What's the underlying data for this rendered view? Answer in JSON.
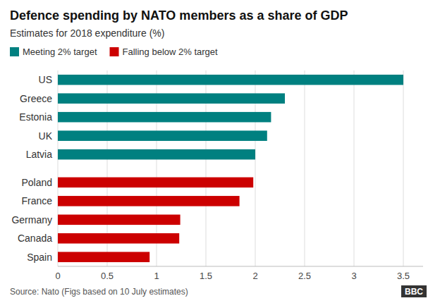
{
  "chart_data": {
    "type": "bar",
    "orientation": "horizontal",
    "title": "Defence spending by NATO members as a share of GDP",
    "subtitle": "Estimates for 2018 expenditure (%)",
    "categories": [
      "US",
      "Greece",
      "Estonia",
      "UK",
      "Latvia",
      "Poland",
      "France",
      "Germany",
      "Canada",
      "Spain"
    ],
    "series": [
      {
        "name": "Meeting 2% target",
        "color": "#008080",
        "values": [
          3.5,
          2.3,
          2.16,
          2.12,
          2.0,
          null,
          null,
          null,
          null,
          null
        ]
      },
      {
        "name": "Falling below 2% target",
        "color": "#cc0000",
        "values": [
          null,
          null,
          null,
          null,
          null,
          1.98,
          1.84,
          1.24,
          1.23,
          0.93
        ]
      }
    ],
    "xlim": [
      0,
      3.7
    ],
    "xticks": [
      0,
      0.5,
      1,
      1.5,
      2,
      2.5,
      3,
      3.5
    ],
    "grid": true,
    "legend": "top-left",
    "annotations": [
      "Source: Nato  (Figs based on 10 July estimates)",
      "BBC"
    ]
  }
}
